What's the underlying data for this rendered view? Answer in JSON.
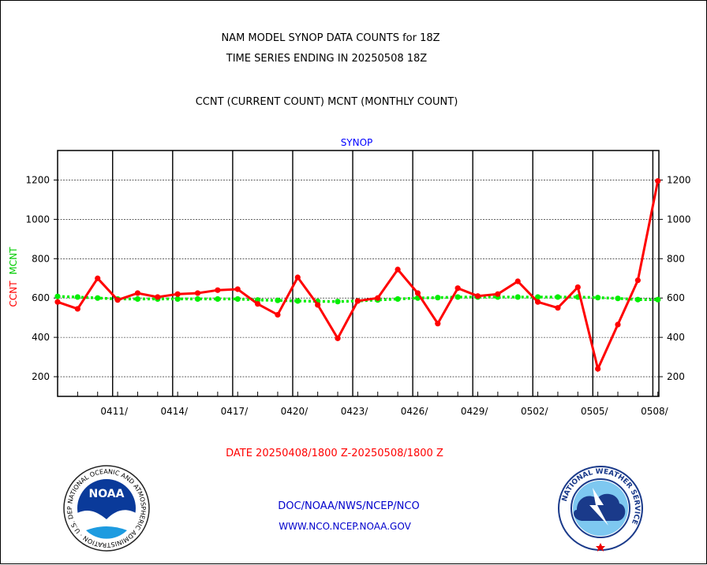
{
  "header": {
    "title_line1": "NAM MODEL SYNOP DATA COUNTS for 18Z",
    "title_line2": "TIME SERIES ENDING IN 20250508 18Z",
    "subtitle": "CCNT (CURRENT COUNT) MCNT (MONTHLY COUNT)"
  },
  "footer": {
    "date_range": "DATE 20250408/1800 Z-20250508/1800 Z",
    "org_line": "DOC/NOAA/NWS/NCEP/NCO",
    "url_line": "WWW.NCO.NCEP.NOAA.GOV"
  },
  "logos": {
    "noaa_text": "NOAA",
    "noaa_ring": "NATIONAL OCEANIC AND ATMOSPHERIC ADMINISTRATION · U.S. DEPARTMENT OF COMMERCE ·",
    "nws_ring": "NATIONAL WEATHER SERVICE"
  },
  "colors": {
    "ccnt": "#ff0000",
    "mcnt": "#00ee00",
    "panel_label": "#0000ff",
    "footer_blue": "#0000cc",
    "date_red": "#ff0000"
  },
  "chart_data": {
    "type": "line",
    "panel_label": "SYNOP",
    "ylabel_ccnt": "CCNT",
    "ylabel_mcnt": "MCNT",
    "ylim": [
      100,
      1350
    ],
    "yticks": [
      200,
      400,
      600,
      800,
      1000,
      1200
    ],
    "grid": true,
    "x": [
      "20250408",
      "20250409",
      "20250410",
      "20250411",
      "20250412",
      "20250413",
      "20250414",
      "20250415",
      "20250416",
      "20250417",
      "20250418",
      "20250419",
      "20250420",
      "20250421",
      "20250422",
      "20250423",
      "20250424",
      "20250425",
      "20250426",
      "20250427",
      "20250428",
      "20250429",
      "20250430",
      "20250501",
      "20250502",
      "20250503",
      "20250504",
      "20250505",
      "20250506",
      "20250507",
      "20250508"
    ],
    "xtick_labels": [
      {
        "index": 3,
        "label": "0411/"
      },
      {
        "index": 6,
        "label": "0414/"
      },
      {
        "index": 9,
        "label": "0417/"
      },
      {
        "index": 12,
        "label": "0420/"
      },
      {
        "index": 15,
        "label": "0423/"
      },
      {
        "index": 18,
        "label": "0426/"
      },
      {
        "index": 21,
        "label": "0429/"
      },
      {
        "index": 24,
        "label": "0502/"
      },
      {
        "index": 27,
        "label": "0505/"
      },
      {
        "index": 30,
        "label": "0508/"
      }
    ],
    "series": [
      {
        "name": "CCNT",
        "values": [
          580,
          545,
          700,
          590,
          625,
          605,
          620,
          625,
          640,
          645,
          570,
          515,
          705,
          565,
          395,
          585,
          600,
          745,
          625,
          470,
          650,
          610,
          620,
          685,
          580,
          550,
          655,
          240,
          465,
          690,
          1195
        ]
      },
      {
        "name": "MCNT",
        "values": [
          608,
          605,
          600,
          595,
          595,
          595,
          595,
          595,
          595,
          595,
          590,
          588,
          585,
          583,
          582,
          585,
          590,
          595,
          600,
          602,
          605,
          605,
          605,
          605,
          605,
          605,
          605,
          602,
          598,
          592,
          592
        ]
      }
    ]
  }
}
